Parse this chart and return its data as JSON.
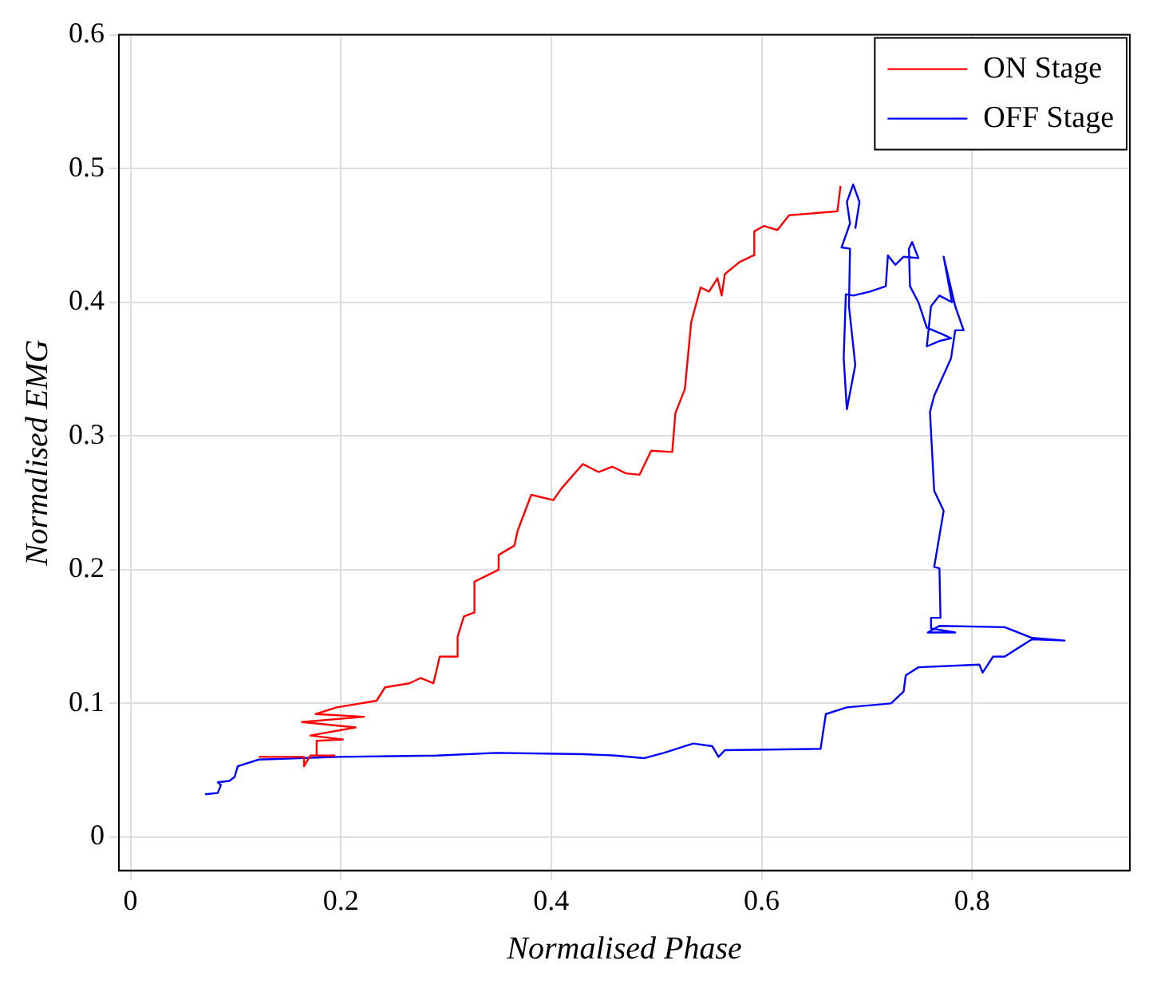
{
  "chart_data": {
    "type": "line",
    "xlabel": "Normalised Phase",
    "ylabel": "Normalised EMG",
    "xlim": [
      -0.011,
      0.95
    ],
    "ylim": [
      -0.025,
      0.6
    ],
    "xticks": [
      0,
      0.2,
      0.4,
      0.6,
      0.8
    ],
    "yticks": [
      0,
      0.1,
      0.2,
      0.3,
      0.4,
      0.5,
      0.6
    ],
    "grid": true,
    "legend": "top right",
    "marker": "none",
    "line_style": "solid",
    "series": [
      {
        "name": "ON Stage",
        "color": "#ff0000",
        "x": [
          0.122,
          0.165,
          0.165,
          0.171,
          0.194,
          0.177,
          0.177,
          0.202,
          0.171,
          0.214,
          0.163,
          0.222,
          0.176,
          0.196,
          0.234,
          0.242,
          0.265,
          0.276,
          0.288,
          0.294,
          0.31,
          0.311,
          0.317,
          0.327,
          0.327,
          0.35,
          0.35,
          0.365,
          0.368,
          0.381,
          0.402,
          0.41,
          0.43,
          0.445,
          0.458,
          0.471,
          0.484,
          0.495,
          0.515,
          0.518,
          0.527,
          0.533,
          0.542,
          0.55,
          0.558,
          0.562,
          0.565,
          0.579,
          0.592,
          0.593,
          0.602,
          0.615,
          0.626,
          0.641,
          0.672,
          0.675
        ],
        "values": [
          0.06,
          0.06,
          0.053,
          0.061,
          0.061,
          0.061,
          0.072,
          0.073,
          0.076,
          0.082,
          0.086,
          0.09,
          0.092,
          0.097,
          0.102,
          0.112,
          0.115,
          0.119,
          0.115,
          0.135,
          0.135,
          0.15,
          0.165,
          0.168,
          0.191,
          0.2,
          0.211,
          0.218,
          0.229,
          0.256,
          0.252,
          0.261,
          0.279,
          0.273,
          0.277,
          0.272,
          0.271,
          0.289,
          0.288,
          0.317,
          0.335,
          0.385,
          0.411,
          0.408,
          0.418,
          0.405,
          0.421,
          0.43,
          0.435,
          0.453,
          0.457,
          0.454,
          0.465,
          0.466,
          0.468,
          0.487
        ]
      },
      {
        "name": "OFF Stage",
        "color": "#0000ff",
        "x": [
          0.071,
          0.083,
          0.086,
          0.083,
          0.094,
          0.099,
          0.102,
          0.122,
          0.199,
          0.291,
          0.348,
          0.43,
          0.461,
          0.488,
          0.507,
          0.535,
          0.553,
          0.559,
          0.565,
          0.656,
          0.661,
          0.681,
          0.723,
          0.735,
          0.737,
          0.749,
          0.807,
          0.81,
          0.82,
          0.831,
          0.857,
          0.888,
          0.857,
          0.831,
          0.769,
          0.758,
          0.784,
          0.761,
          0.761,
          0.77,
          0.769,
          0.764,
          0.773,
          0.764,
          0.76,
          0.764,
          0.78,
          0.784,
          0.792,
          0.784,
          0.773,
          0.781,
          0.769,
          0.761,
          0.757,
          0.769,
          0.78,
          0.772,
          0.757,
          0.749,
          0.741,
          0.74,
          0.743,
          0.749,
          0.735,
          0.727,
          0.72,
          0.718,
          0.703,
          0.687,
          0.68,
          0.678,
          0.681,
          0.689,
          0.683,
          0.684,
          0.676,
          0.684,
          0.681,
          0.687,
          0.693,
          0.689
        ],
        "values": [
          0.032,
          0.033,
          0.039,
          0.041,
          0.042,
          0.045,
          0.053,
          0.058,
          0.06,
          0.061,
          0.063,
          0.062,
          0.061,
          0.059,
          0.063,
          0.07,
          0.068,
          0.06,
          0.065,
          0.066,
          0.092,
          0.097,
          0.1,
          0.109,
          0.121,
          0.127,
          0.129,
          0.123,
          0.135,
          0.135,
          0.148,
          0.147,
          0.149,
          0.157,
          0.158,
          0.153,
          0.153,
          0.156,
          0.164,
          0.164,
          0.201,
          0.202,
          0.244,
          0.259,
          0.318,
          0.33,
          0.358,
          0.379,
          0.379,
          0.397,
          0.434,
          0.4,
          0.405,
          0.397,
          0.367,
          0.371,
          0.373,
          0.376,
          0.381,
          0.4,
          0.412,
          0.44,
          0.445,
          0.433,
          0.434,
          0.428,
          0.435,
          0.412,
          0.408,
          0.405,
          0.406,
          0.358,
          0.32,
          0.353,
          0.397,
          0.44,
          0.441,
          0.459,
          0.475,
          0.488,
          0.475,
          0.455
        ]
      }
    ]
  }
}
